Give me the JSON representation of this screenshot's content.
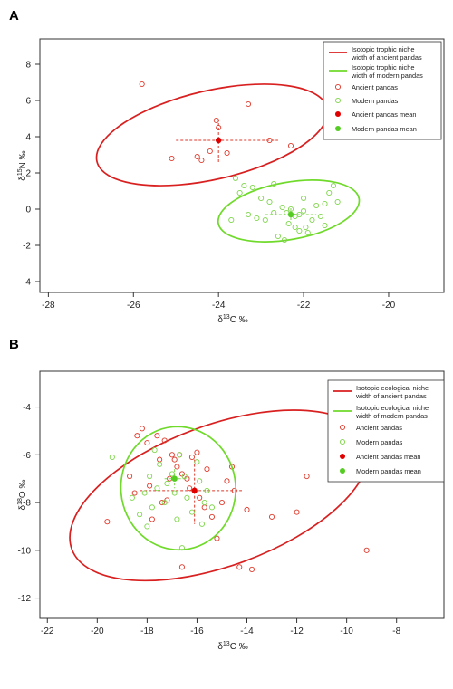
{
  "colors": {
    "ancient": "#e0392b",
    "modern": "#7ed64a",
    "ancient_ellipse": "#d92020",
    "modern_ellipse": "#6fda2a"
  },
  "chart_data": [
    {
      "panel_label": "A",
      "type": "scatter",
      "xlabel_prefix": "δ",
      "xlabel_sup": "13",
      "xlabel_suffix": "C ‰",
      "ylabel_prefix": "δ",
      "ylabel_sup": "15",
      "ylabel_suffix": "N ‰",
      "xlim": [
        -28.2,
        -18.7
      ],
      "ylim": [
        -4.6,
        9.4
      ],
      "xticks": [
        -28,
        -26,
        -24,
        -22,
        -20
      ],
      "yticks": [
        -4,
        -2,
        0,
        2,
        4,
        6,
        8
      ],
      "grid": false,
      "legend_position": "top-right",
      "legend": [
        {
          "kind": "line",
          "series": "ancient",
          "text": "Isotopic trophic niche width of ancient pandas"
        },
        {
          "kind": "line",
          "series": "modern",
          "text": "Isotopic trophic niche width of modern pandas"
        },
        {
          "kind": "open",
          "series": "ancient",
          "text": "Ancient pandas"
        },
        {
          "kind": "open",
          "series": "modern",
          "text": "Modern pandas"
        },
        {
          "kind": "filled",
          "series": "ancient",
          "text": "Ancient pandas mean"
        },
        {
          "kind": "filled",
          "series": "modern",
          "text": "Modern pandas mean"
        }
      ],
      "series": [
        {
          "name": "Ancient pandas",
          "key": "ancient",
          "points": [
            [
              -25.8,
              6.9
            ],
            [
              -25.1,
              2.8
            ],
            [
              -24.5,
              2.9
            ],
            [
              -24.4,
              2.7
            ],
            [
              -24.2,
              3.2
            ],
            [
              -24.05,
              4.9
            ],
            [
              -24.0,
              4.5
            ],
            [
              -23.8,
              3.1
            ],
            [
              -23.3,
              5.8
            ],
            [
              -22.8,
              3.8
            ],
            [
              -22.3,
              3.5
            ]
          ],
          "mean": [
            -24.0,
            3.8
          ],
          "mean_error": {
            "x": [
              -25.0,
              -22.6
            ],
            "y": [
              2.6,
              4.9
            ]
          },
          "ellipse": {
            "cx": -24.15,
            "cy": 4.1,
            "rx": 2.78,
            "ry": 2.45,
            "tilt_deg": -13
          }
        },
        {
          "name": "Modern pandas",
          "key": "modern",
          "points": [
            [
              -23.6,
              1.7
            ],
            [
              -23.4,
              1.3
            ],
            [
              -23.2,
              1.2
            ],
            [
              -23.5,
              0.9
            ],
            [
              -23.0,
              0.6
            ],
            [
              -22.8,
              0.4
            ],
            [
              -23.3,
              -0.3
            ],
            [
              -23.1,
              -0.5
            ],
            [
              -22.9,
              -0.6
            ],
            [
              -22.7,
              1.4
            ],
            [
              -22.5,
              0.1
            ],
            [
              -22.4,
              -0.2
            ],
            [
              -22.3,
              0.0
            ],
            [
              -22.2,
              -0.4
            ],
            [
              -22.1,
              -0.3
            ],
            [
              -22.0,
              -0.1
            ],
            [
              -22.35,
              -0.8
            ],
            [
              -22.2,
              -1.0
            ],
            [
              -22.1,
              -1.2
            ],
            [
              -21.9,
              -1.3
            ],
            [
              -21.8,
              -0.6
            ],
            [
              -21.7,
              0.2
            ],
            [
              -21.6,
              -0.4
            ],
            [
              -21.5,
              0.3
            ],
            [
              -21.5,
              -0.9
            ],
            [
              -21.4,
              0.9
            ],
            [
              -21.3,
              1.3
            ],
            [
              -21.2,
              0.4
            ],
            [
              -22.6,
              -1.5
            ],
            [
              -22.45,
              -1.7
            ],
            [
              -21.95,
              -1.0
            ],
            [
              -22.7,
              -0.2
            ],
            [
              -23.7,
              -0.6
            ],
            [
              -22.0,
              0.6
            ]
          ],
          "mean": [
            -22.3,
            -0.3
          ],
          "mean_error": {
            "x": [
              -22.9,
              -21.7
            ],
            "y": [
              -0.6,
              0.1
            ]
          },
          "ellipse": {
            "cx": -22.35,
            "cy": -0.1,
            "rx": 1.68,
            "ry": 1.58,
            "tilt_deg": -10
          }
        }
      ]
    },
    {
      "panel_label": "B",
      "type": "scatter",
      "xlabel_prefix": "δ",
      "xlabel_sup": "13",
      "xlabel_suffix": "C ‰",
      "ylabel_prefix": "δ",
      "ylabel_sup": "18",
      "ylabel_suffix": "O ‰",
      "xlim": [
        -22.3,
        -6.1
      ],
      "ylim": [
        -12.85,
        -2.5
      ],
      "xticks": [
        -22,
        -20,
        -18,
        -16,
        -14,
        -12,
        -10,
        -8
      ],
      "yticks": [
        -4,
        -6,
        -8,
        -10,
        -12
      ],
      "grid": false,
      "legend_position": "top-right",
      "legend": [
        {
          "kind": "line",
          "series": "ancient",
          "text": "Isotopic ecological niche width of ancient  pandas"
        },
        {
          "kind": "line",
          "series": "modern",
          "text": "Isotopic ecological niche width of modern pandas"
        },
        {
          "kind": "open",
          "series": "ancient",
          "text": "Ancient pandas"
        },
        {
          "kind": "open",
          "series": "modern",
          "text": "Modern pandas"
        },
        {
          "kind": "filled",
          "series": "ancient",
          "text": "Ancient pandas mean"
        },
        {
          "kind": "filled",
          "series": "modern",
          "text": "Modern pandas mean"
        }
      ],
      "series": [
        {
          "name": "Ancient pandas",
          "key": "ancient",
          "points": [
            [
              -19.6,
              -8.8
            ],
            [
              -18.4,
              -5.2
            ],
            [
              -18.2,
              -4.9
            ],
            [
              -18.0,
              -5.5
            ],
            [
              -17.9,
              -7.3
            ],
            [
              -17.6,
              -5.2
            ],
            [
              -17.5,
              -6.2
            ],
            [
              -17.3,
              -5.4
            ],
            [
              -17.2,
              -7.9
            ],
            [
              -17.0,
              -6.0
            ],
            [
              -16.9,
              -6.2
            ],
            [
              -16.8,
              -6.5
            ],
            [
              -16.7,
              -6.0
            ],
            [
              -16.6,
              -6.8
            ],
            [
              -16.4,
              -7.0
            ],
            [
              -16.2,
              -6.1
            ],
            [
              -16.0,
              -5.9
            ],
            [
              -15.9,
              -7.8
            ],
            [
              -15.6,
              -6.6
            ],
            [
              -15.4,
              -8.6
            ],
            [
              -15.2,
              -9.5
            ],
            [
              -15.0,
              -8.0
            ],
            [
              -14.8,
              -7.1
            ],
            [
              -14.6,
              -6.5
            ],
            [
              -14.5,
              -7.5
            ],
            [
              -14.3,
              -10.7
            ],
            [
              -14.0,
              -8.3
            ],
            [
              -13.8,
              -10.8
            ],
            [
              -13.0,
              -8.6
            ],
            [
              -12.0,
              -8.4
            ],
            [
              -11.6,
              -6.9
            ],
            [
              -9.2,
              -10.0
            ],
            [
              -18.7,
              -6.9
            ],
            [
              -18.5,
              -7.6
            ],
            [
              -17.8,
              -8.7
            ],
            [
              -17.4,
              -8.0
            ],
            [
              -16.6,
              -10.7
            ],
            [
              -16.3,
              -7.4
            ],
            [
              -15.7,
              -8.2
            ],
            [
              -17.1,
              -7.0
            ]
          ],
          "mean": [
            -16.1,
            -7.5
          ],
          "mean_error": {
            "x": [
              -18.3,
              -14.2
            ],
            "y": [
              -6.2,
              -8.9
            ]
          },
          "ellipse": {
            "cx": -15.1,
            "cy": -7.7,
            "rx": 6.3,
            "ry": 2.95,
            "tilt_deg": -20
          }
        },
        {
          "name": "Modern pandas",
          "key": "modern",
          "points": [
            [
              -19.4,
              -6.1
            ],
            [
              -18.6,
              -7.8
            ],
            [
              -18.3,
              -8.5
            ],
            [
              -18.1,
              -7.6
            ],
            [
              -17.9,
              -6.9
            ],
            [
              -17.8,
              -8.2
            ],
            [
              -17.6,
              -7.4
            ],
            [
              -17.5,
              -6.4
            ],
            [
              -17.3,
              -8.0
            ],
            [
              -17.2,
              -7.2
            ],
            [
              -17.0,
              -6.8
            ],
            [
              -16.9,
              -7.6
            ],
            [
              -16.8,
              -8.7
            ],
            [
              -16.6,
              -9.9
            ],
            [
              -16.5,
              -6.9
            ],
            [
              -16.4,
              -7.8
            ],
            [
              -16.2,
              -8.4
            ],
            [
              -16.0,
              -6.3
            ],
            [
              -15.9,
              -7.1
            ],
            [
              -15.8,
              -8.9
            ],
            [
              -15.6,
              -7.5
            ],
            [
              -15.4,
              -8.2
            ],
            [
              -17.7,
              -5.8
            ],
            [
              -18.0,
              -9.0
            ],
            [
              -16.7,
              -6.0
            ],
            [
              -15.7,
              -8.0
            ]
          ],
          "mean": [
            -16.9,
            -7.0
          ],
          "mean_error": {
            "x": [
              -17.3,
              -16.5
            ],
            "y": [
              -6.6,
              -7.4
            ]
          },
          "ellipse": {
            "cx": -16.75,
            "cy": -7.4,
            "rx": 2.3,
            "ry": 2.58,
            "tilt_deg": -5
          }
        }
      ]
    }
  ]
}
